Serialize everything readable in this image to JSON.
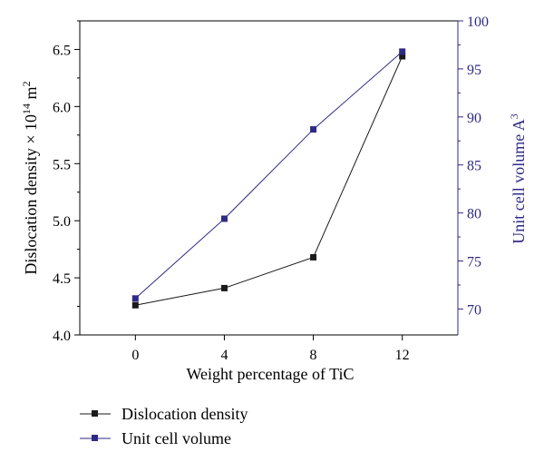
{
  "chart_data": {
    "type": "line",
    "x": [
      0,
      4,
      8,
      12
    ],
    "xlabel": "Weight percentage of TiC",
    "xticks": [
      "0",
      "4",
      "8",
      "12"
    ],
    "xlim": [
      -2.5,
      14.5
    ],
    "ylabel_left": "Dislocation density × 10",
    "ylabel_left_sup1": "14",
    "ylabel_left_mid": " m",
    "ylabel_left_sup2": "2",
    "ylim_left": [
      4.0,
      6.75
    ],
    "yticks_left": [
      "4.0",
      "4.5",
      "5.0",
      "5.5",
      "6.0",
      "6.5"
    ],
    "ylabel_right": "Unit cell volume A",
    "ylabel_right_sup": "3",
    "ylim_right": [
      67.3,
      100
    ],
    "yticks_right": [
      "70",
      "75",
      "80",
      "85",
      "90",
      "95",
      "100"
    ],
    "legend_position": "bottom-left-outside",
    "grid": false,
    "series": [
      {
        "name": "Dislocation density",
        "axis": "left",
        "color": "#1a1a1a",
        "marker": "square",
        "values": [
          4.26,
          4.41,
          4.68,
          6.44
        ]
      },
      {
        "name": "Unit cell volume",
        "axis": "right",
        "color": "#2e2a85",
        "marker": "square",
        "values": [
          71.1,
          79.4,
          88.7,
          96.8
        ]
      }
    ],
    "colors": {
      "axis": "#000000",
      "right_axis": "#2e2a85"
    }
  }
}
